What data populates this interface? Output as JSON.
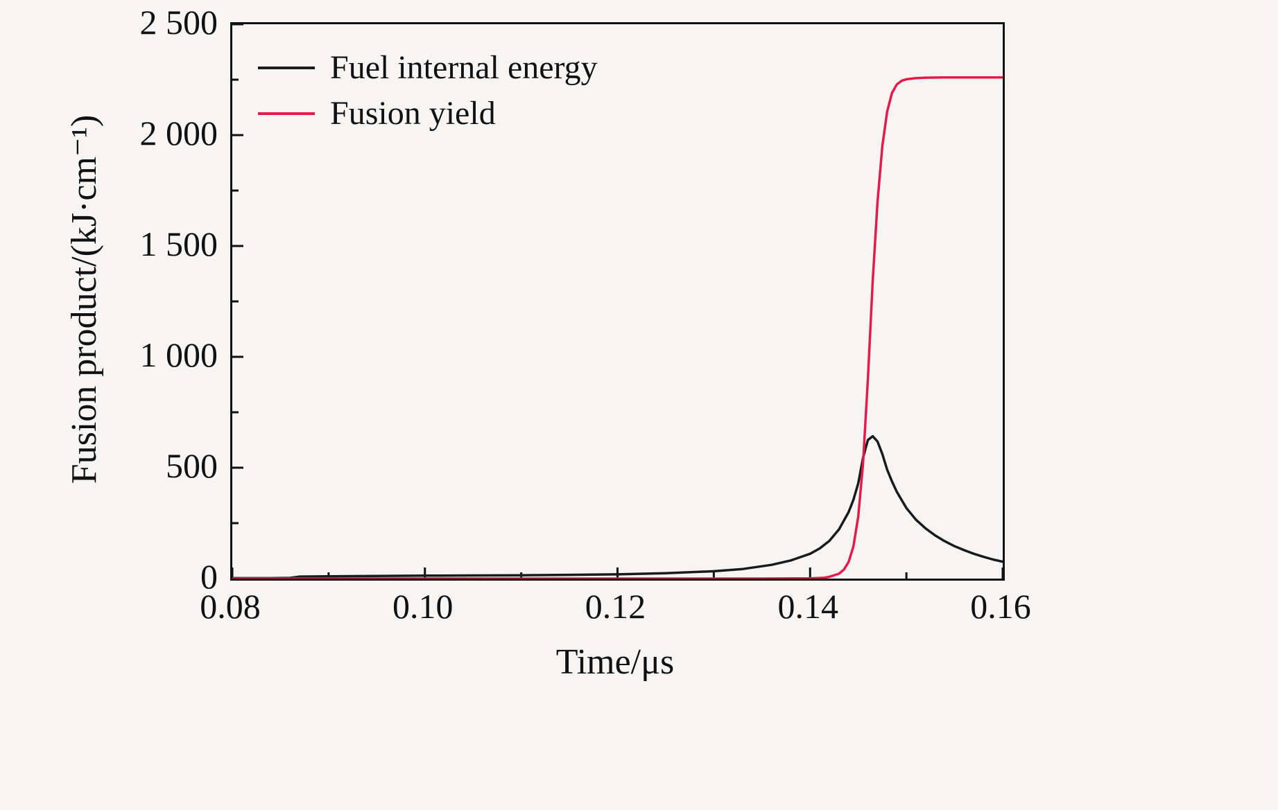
{
  "chart_data": {
    "type": "line",
    "title": "",
    "xlabel": "Time/μs",
    "ylabel": "Fusion product/(kJ·cm⁻¹)",
    "xlim": [
      0.08,
      0.16
    ],
    "ylim": [
      0,
      2500
    ],
    "grid": false,
    "background": "#f6f5f3",
    "axis_color": "#111111",
    "xticks": {
      "values": [
        0.08,
        0.1,
        0.12,
        0.14,
        0.16
      ],
      "labels": [
        "0.08",
        "0.10",
        "0.12",
        "0.14",
        "0.16"
      ],
      "minor_values": [
        0.09,
        0.11,
        0.13,
        0.15
      ]
    },
    "yticks": {
      "values": [
        0,
        500,
        1000,
        1500,
        2000,
        2500
      ],
      "labels": [
        "0",
        "500",
        "1 000",
        "1 500",
        "2 000",
        "2 500"
      ],
      "minor_values": [
        250,
        750,
        1250,
        1750,
        2250
      ]
    },
    "legend": {
      "position": "top-left-inside"
    },
    "series": [
      {
        "name": "Fuel internal energy",
        "color": "#1a1a1a",
        "points": [
          [
            0.08,
            2
          ],
          [
            0.084,
            2
          ],
          [
            0.086,
            3
          ],
          [
            0.0865,
            6
          ],
          [
            0.087,
            9
          ],
          [
            0.09,
            10
          ],
          [
            0.095,
            12
          ],
          [
            0.1,
            13
          ],
          [
            0.105,
            14
          ],
          [
            0.11,
            15
          ],
          [
            0.115,
            17
          ],
          [
            0.12,
            19
          ],
          [
            0.125,
            24
          ],
          [
            0.13,
            33
          ],
          [
            0.133,
            43
          ],
          [
            0.136,
            62
          ],
          [
            0.138,
            82
          ],
          [
            0.14,
            112
          ],
          [
            0.141,
            136
          ],
          [
            0.142,
            170
          ],
          [
            0.143,
            222
          ],
          [
            0.144,
            300
          ],
          [
            0.1445,
            355
          ],
          [
            0.145,
            430
          ],
          [
            0.1455,
            545
          ],
          [
            0.146,
            625
          ],
          [
            0.1465,
            642
          ],
          [
            0.147,
            618
          ],
          [
            0.1475,
            562
          ],
          [
            0.148,
            492
          ],
          [
            0.1485,
            438
          ],
          [
            0.149,
            392
          ],
          [
            0.15,
            318
          ],
          [
            0.151,
            265
          ],
          [
            0.152,
            226
          ],
          [
            0.153,
            194
          ],
          [
            0.154,
            168
          ],
          [
            0.155,
            146
          ],
          [
            0.156,
            128
          ],
          [
            0.157,
            112
          ],
          [
            0.158,
            98
          ],
          [
            0.159,
            86
          ],
          [
            0.16,
            76
          ]
        ]
      },
      {
        "name": "Fusion yield",
        "color": "#e6194b",
        "points": [
          [
            0.08,
            0
          ],
          [
            0.1,
            0
          ],
          [
            0.12,
            0
          ],
          [
            0.135,
            0
          ],
          [
            0.14,
            1
          ],
          [
            0.1415,
            4
          ],
          [
            0.142,
            8
          ],
          [
            0.143,
            22
          ],
          [
            0.1435,
            40
          ],
          [
            0.144,
            75
          ],
          [
            0.1445,
            145
          ],
          [
            0.145,
            280
          ],
          [
            0.1455,
            520
          ],
          [
            0.146,
            900
          ],
          [
            0.1465,
            1340
          ],
          [
            0.147,
            1700
          ],
          [
            0.1475,
            1950
          ],
          [
            0.148,
            2105
          ],
          [
            0.1485,
            2190
          ],
          [
            0.149,
            2228
          ],
          [
            0.1495,
            2245
          ],
          [
            0.15,
            2252
          ],
          [
            0.151,
            2257
          ],
          [
            0.152,
            2259
          ],
          [
            0.154,
            2260
          ],
          [
            0.156,
            2260
          ],
          [
            0.158,
            2260
          ],
          [
            0.16,
            2260
          ]
        ]
      }
    ]
  }
}
